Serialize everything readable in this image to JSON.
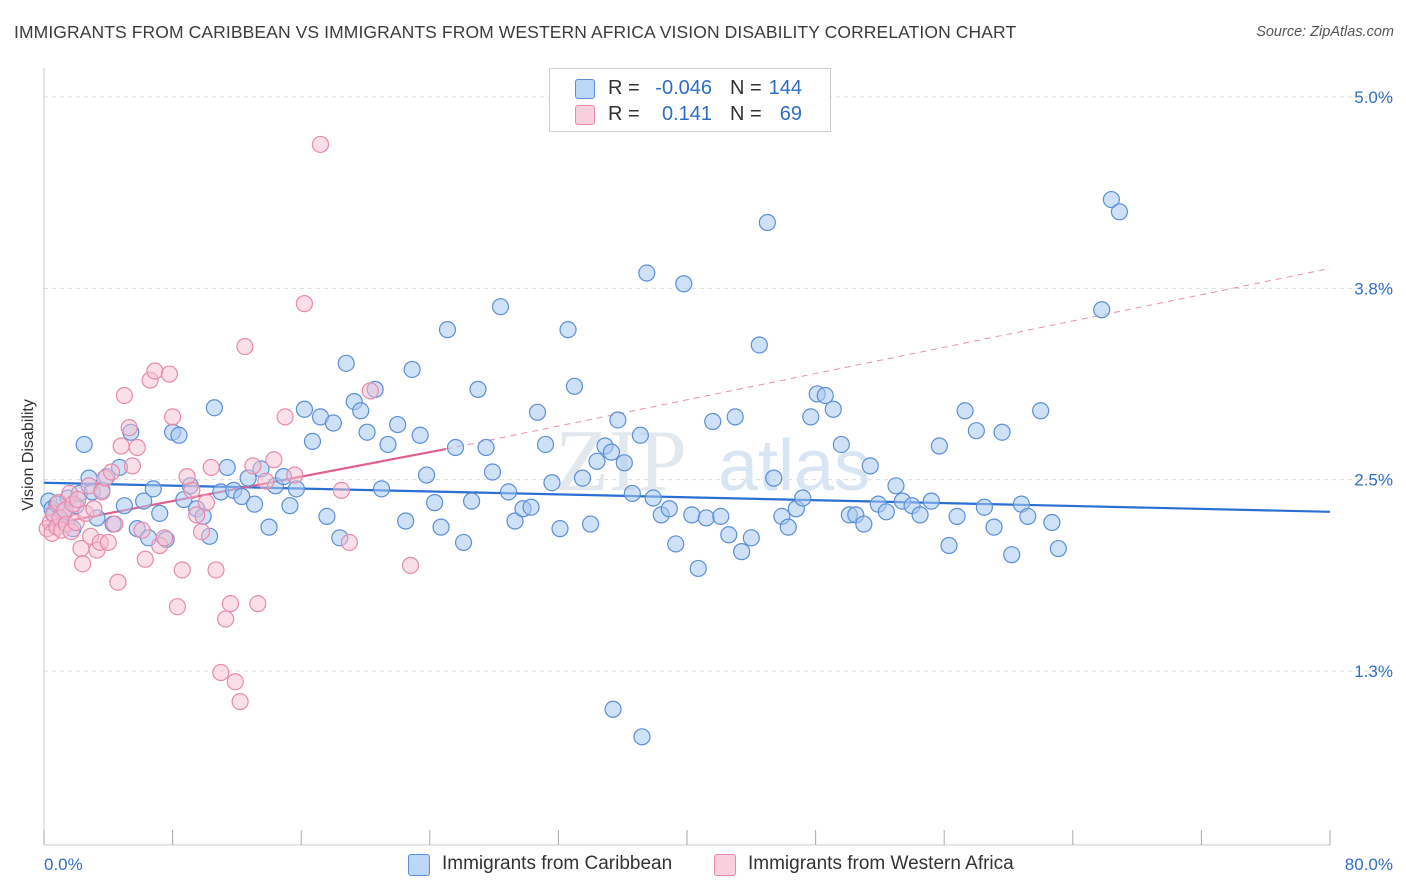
{
  "title": "IMMIGRANTS FROM CARIBBEAN VS IMMIGRANTS FROM WESTERN AFRICA VISION DISABILITY CORRELATION CHART",
  "source": "Source: ZipAtlas.com",
  "legend_top": {
    "rows": [
      {
        "r_label": "R =",
        "r_value": "-0.046",
        "n_label": "N =",
        "n_value": "144"
      },
      {
        "r_label": "R =",
        "r_value": "0.141",
        "n_label": "N =",
        "n_value": "69"
      }
    ]
  },
  "legend_bottom": {
    "items": [
      {
        "label": "Immigrants from Caribbean"
      },
      {
        "label": "Immigrants from Western Africa"
      }
    ]
  },
  "colors": {
    "blue_fill": "#a8c8ef",
    "blue_stroke": "#5b8fd6",
    "blue_line": "#2a6fd1",
    "pink_fill": "#f5bfd2",
    "pink_stroke": "#e88aab",
    "pink_line": "#e0608e",
    "axis_label_blue": "#2f6fc2",
    "grid": "#dcdcdc"
  },
  "watermark": "ZIPatlas",
  "chart_data": {
    "type": "scatter",
    "title": "IMMIGRANTS FROM CARIBBEAN VS IMMIGRANTS FROM WESTERN AFRICA VISION DISABILITY CORRELATION CHART",
    "xlabel": "",
    "ylabel": "Vision Disability",
    "xlim": [
      0,
      80
    ],
    "ylim": [
      0,
      5.25
    ],
    "x_tick_labels": [
      "0.0%",
      "80.0%"
    ],
    "y_ticks": [
      1.25,
      2.5,
      3.75,
      5.0
    ],
    "y_tick_labels": [
      "1.3%",
      "2.5%",
      "3.8%",
      "5.0%"
    ],
    "grid": true,
    "legend_position": "top-center",
    "series": [
      {
        "name": "Immigrants from Caribbean",
        "color": "#a8c8ef",
        "trend": {
          "x": [
            0,
            80
          ],
          "y": [
            2.48,
            2.29
          ]
        },
        "points": [
          [
            0.3,
            2.36
          ],
          [
            0.5,
            2.31
          ],
          [
            0.6,
            2.27
          ],
          [
            0.8,
            2.34
          ],
          [
            1.0,
            2.24
          ],
          [
            1.2,
            2.29
          ],
          [
            1.5,
            2.38
          ],
          [
            1.8,
            2.18
          ],
          [
            2.0,
            2.33
          ],
          [
            2.2,
            2.41
          ],
          [
            2.5,
            2.73
          ],
          [
            2.8,
            2.51
          ],
          [
            3.0,
            2.42
          ],
          [
            3.3,
            2.25
          ],
          [
            3.6,
            2.43
          ],
          [
            3.9,
            2.52
          ],
          [
            4.3,
            2.21
          ],
          [
            4.7,
            2.58
          ],
          [
            5.0,
            2.33
          ],
          [
            5.4,
            2.81
          ],
          [
            5.8,
            2.18
          ],
          [
            6.2,
            2.36
          ],
          [
            6.5,
            2.12
          ],
          [
            6.8,
            2.44
          ],
          [
            7.2,
            2.28
          ],
          [
            7.6,
            2.11
          ],
          [
            8.0,
            2.81
          ],
          [
            8.4,
            2.79
          ],
          [
            8.7,
            2.37
          ],
          [
            9.1,
            2.46
          ],
          [
            9.5,
            2.31
          ],
          [
            9.9,
            2.26
          ],
          [
            10.3,
            2.13
          ],
          [
            10.6,
            2.97
          ],
          [
            11.0,
            2.42
          ],
          [
            11.4,
            2.58
          ],
          [
            11.8,
            2.43
          ],
          [
            12.3,
            2.39
          ],
          [
            12.7,
            2.51
          ],
          [
            13.1,
            2.34
          ],
          [
            13.5,
            2.57
          ],
          [
            14.0,
            2.19
          ],
          [
            14.4,
            2.46
          ],
          [
            14.9,
            2.52
          ],
          [
            15.3,
            2.33
          ],
          [
            15.7,
            2.44
          ],
          [
            16.2,
            2.96
          ],
          [
            16.7,
            2.75
          ],
          [
            17.2,
            2.91
          ],
          [
            17.6,
            2.26
          ],
          [
            18.0,
            2.87
          ],
          [
            18.4,
            2.12
          ],
          [
            18.8,
            3.26
          ],
          [
            19.3,
            3.01
          ],
          [
            19.7,
            2.95
          ],
          [
            20.1,
            2.81
          ],
          [
            20.6,
            3.09
          ],
          [
            21.0,
            2.44
          ],
          [
            21.4,
            2.73
          ],
          [
            22.0,
            2.86
          ],
          [
            22.5,
            2.23
          ],
          [
            22.9,
            3.22
          ],
          [
            23.4,
            2.79
          ],
          [
            23.8,
            2.53
          ],
          [
            24.3,
            2.35
          ],
          [
            24.7,
            2.19
          ],
          [
            25.1,
            3.48
          ],
          [
            25.6,
            2.71
          ],
          [
            26.1,
            2.09
          ],
          [
            26.6,
            2.36
          ],
          [
            27.0,
            3.09
          ],
          [
            27.5,
            2.71
          ],
          [
            27.9,
            2.55
          ],
          [
            28.4,
            3.63
          ],
          [
            28.9,
            2.42
          ],
          [
            29.3,
            2.23
          ],
          [
            29.8,
            2.31
          ],
          [
            30.3,
            2.32
          ],
          [
            30.7,
            2.94
          ],
          [
            31.2,
            2.73
          ],
          [
            31.6,
            2.48
          ],
          [
            32.1,
            2.18
          ],
          [
            32.6,
            3.48
          ],
          [
            33.0,
            3.11
          ],
          [
            33.5,
            2.51
          ],
          [
            34.0,
            2.21
          ],
          [
            34.4,
            2.62
          ],
          [
            34.9,
            2.72
          ],
          [
            35.3,
            2.68
          ],
          [
            35.7,
            2.89
          ],
          [
            36.1,
            2.61
          ],
          [
            36.6,
            2.41
          ],
          [
            37.1,
            2.79
          ],
          [
            37.5,
            3.85
          ],
          [
            37.9,
            2.38
          ],
          [
            38.4,
            2.27
          ],
          [
            38.9,
            2.31
          ],
          [
            39.3,
            2.08
          ],
          [
            39.8,
            3.78
          ],
          [
            40.3,
            2.27
          ],
          [
            40.7,
            1.92
          ],
          [
            41.2,
            2.25
          ],
          [
            41.6,
            2.88
          ],
          [
            42.1,
            2.26
          ],
          [
            42.6,
            2.14
          ],
          [
            43.0,
            2.91
          ],
          [
            43.4,
            2.03
          ],
          [
            44.0,
            2.12
          ],
          [
            44.5,
            3.38
          ],
          [
            45.0,
            4.18
          ],
          [
            45.4,
            2.51
          ],
          [
            45.9,
            2.26
          ],
          [
            46.3,
            2.19
          ],
          [
            46.8,
            2.31
          ],
          [
            47.2,
            2.38
          ],
          [
            47.7,
            2.91
          ],
          [
            48.1,
            3.06
          ],
          [
            48.6,
            3.05
          ],
          [
            49.1,
            2.96
          ],
          [
            49.6,
            2.73
          ],
          [
            50.1,
            2.27
          ],
          [
            50.5,
            2.27
          ],
          [
            51.0,
            2.21
          ],
          [
            51.4,
            2.59
          ],
          [
            51.9,
            2.34
          ],
          [
            52.4,
            2.29
          ],
          [
            53.0,
            2.46
          ],
          [
            53.4,
            2.36
          ],
          [
            54.0,
            2.33
          ],
          [
            54.5,
            2.27
          ],
          [
            55.2,
            2.36
          ],
          [
            55.7,
            2.72
          ],
          [
            56.3,
            2.07
          ],
          [
            56.8,
            2.26
          ],
          [
            57.3,
            2.95
          ],
          [
            58.0,
            2.82
          ],
          [
            58.5,
            2.32
          ],
          [
            59.1,
            2.19
          ],
          [
            59.6,
            2.81
          ],
          [
            60.2,
            2.01
          ],
          [
            60.8,
            2.34
          ],
          [
            61.2,
            2.26
          ],
          [
            62.0,
            2.95
          ],
          [
            62.7,
            2.22
          ],
          [
            63.1,
            2.05
          ],
          [
            65.8,
            3.61
          ],
          [
            66.4,
            4.33
          ],
          [
            66.9,
            4.25
          ],
          [
            35.4,
            1.0
          ],
          [
            37.2,
            0.82
          ]
        ]
      },
      {
        "name": "Immigrants from Western Africa",
        "color": "#f5bfd2",
        "trend": {
          "x": [
            0,
            25
          ],
          "y": [
            2.2,
            2.7
          ],
          "dash_x": [
            25,
            80
          ],
          "dash_y": [
            2.7,
            3.88
          ]
        },
        "points": [
          [
            0.2,
            2.18
          ],
          [
            0.4,
            2.22
          ],
          [
            0.5,
            2.15
          ],
          [
            0.6,
            2.28
          ],
          [
            0.8,
            2.19
          ],
          [
            0.9,
            2.35
          ],
          [
            1.0,
            2.25
          ],
          [
            1.1,
            2.17
          ],
          [
            1.3,
            2.3
          ],
          [
            1.4,
            2.21
          ],
          [
            1.6,
            2.41
          ],
          [
            1.7,
            2.16
          ],
          [
            1.8,
            2.34
          ],
          [
            2.0,
            2.22
          ],
          [
            2.1,
            2.37
          ],
          [
            2.3,
            2.05
          ],
          [
            2.4,
            1.95
          ],
          [
            2.6,
            2.28
          ],
          [
            2.8,
            2.46
          ],
          [
            2.9,
            2.13
          ],
          [
            3.1,
            2.31
          ],
          [
            3.3,
            2.04
          ],
          [
            3.5,
            2.09
          ],
          [
            3.6,
            2.42
          ],
          [
            3.8,
            2.51
          ],
          [
            4.0,
            2.09
          ],
          [
            4.2,
            2.55
          ],
          [
            4.4,
            2.21
          ],
          [
            4.6,
            1.83
          ],
          [
            4.8,
            2.72
          ],
          [
            5.0,
            3.05
          ],
          [
            5.3,
            2.84
          ],
          [
            5.5,
            2.59
          ],
          [
            5.8,
            2.71
          ],
          [
            6.1,
            2.17
          ],
          [
            6.3,
            1.98
          ],
          [
            6.6,
            3.15
          ],
          [
            6.9,
            3.21
          ],
          [
            7.2,
            2.07
          ],
          [
            7.5,
            2.12
          ],
          [
            7.8,
            3.19
          ],
          [
            8.0,
            2.91
          ],
          [
            8.3,
            1.67
          ],
          [
            8.6,
            1.91
          ],
          [
            8.9,
            2.52
          ],
          [
            9.2,
            2.43
          ],
          [
            9.5,
            2.27
          ],
          [
            9.8,
            2.16
          ],
          [
            10.1,
            2.35
          ],
          [
            10.4,
            2.58
          ],
          [
            10.7,
            1.91
          ],
          [
            11.0,
            1.24
          ],
          [
            11.3,
            1.59
          ],
          [
            11.6,
            1.69
          ],
          [
            11.9,
            1.18
          ],
          [
            12.2,
            1.05
          ],
          [
            12.5,
            3.37
          ],
          [
            13.0,
            2.59
          ],
          [
            13.3,
            1.69
          ],
          [
            13.8,
            2.49
          ],
          [
            14.3,
            2.63
          ],
          [
            15.0,
            2.91
          ],
          [
            15.6,
            2.53
          ],
          [
            16.2,
            3.65
          ],
          [
            17.2,
            4.69
          ],
          [
            18.5,
            2.43
          ],
          [
            19.0,
            2.09
          ],
          [
            20.3,
            3.08
          ],
          [
            22.8,
            1.94
          ]
        ]
      }
    ]
  }
}
